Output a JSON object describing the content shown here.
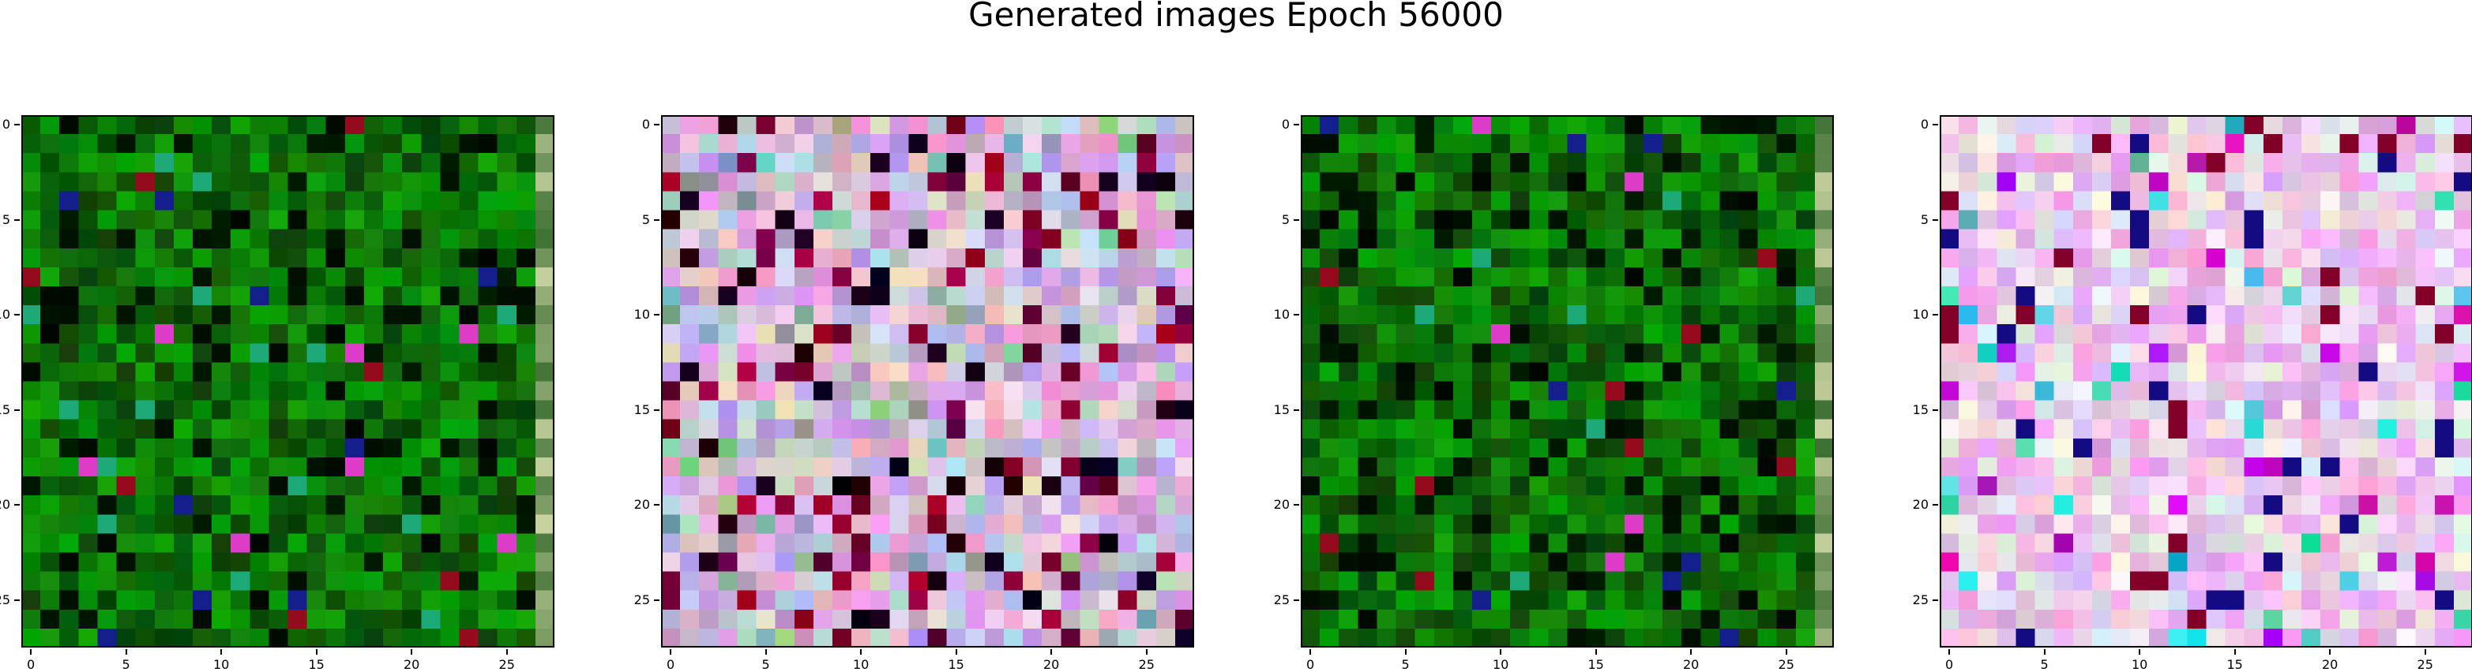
{
  "title": "Generated images Epoch 56000",
  "grid_size": 28,
  "axis_ticks": {
    "values": [
      0,
      5,
      10,
      15,
      20,
      25
    ],
    "labels": [
      "0",
      "5",
      "10",
      "15",
      "20",
      "25"
    ]
  },
  "panels": [
    {
      "name": "image-1",
      "palette": "green-dark",
      "seed": 11
    },
    {
      "name": "image-2",
      "palette": "pastel-mixed",
      "seed": 23
    },
    {
      "name": "image-3",
      "palette": "green-dark",
      "seed": 37
    },
    {
      "name": "image-4",
      "palette": "pink-magenta",
      "seed": 51
    }
  ]
}
